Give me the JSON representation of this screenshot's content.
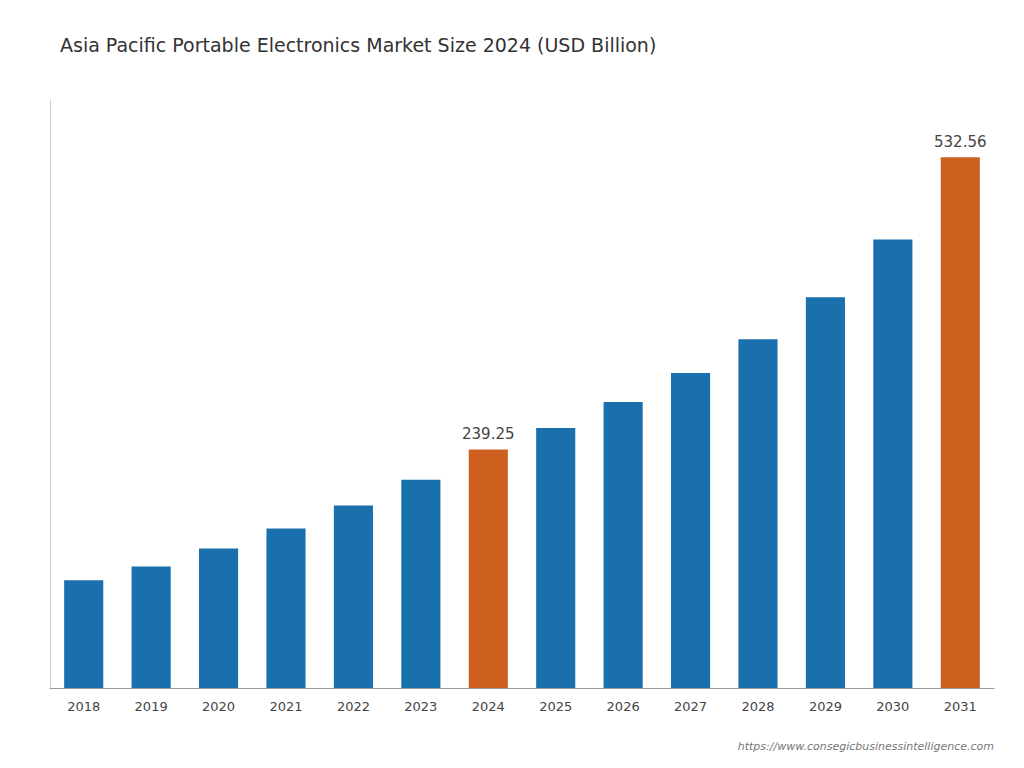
{
  "chart_data": {
    "type": "bar",
    "title": "Asia Pacific Portable Electronics Market Size 2024 (USD Billion)",
    "categories": [
      "2018",
      "2019",
      "2020",
      "2021",
      "2022",
      "2023",
      "2024",
      "2025",
      "2026",
      "2027",
      "2028",
      "2029",
      "2030",
      "2031"
    ],
    "values": [
      108.0,
      122.0,
      140.0,
      160.0,
      183.0,
      209.0,
      239.25,
      261.0,
      287.0,
      316.0,
      350.0,
      392.0,
      450.0,
      532.56
    ],
    "value_labels": [
      null,
      null,
      null,
      null,
      null,
      null,
      "239.25",
      null,
      null,
      null,
      null,
      null,
      null,
      "532.56"
    ],
    "colors": [
      "#1a6fad",
      "#1a6fad",
      "#1a6fad",
      "#1a6fad",
      "#1a6fad",
      "#1a6fad",
      "#cf6120",
      "#1a6fad",
      "#1a6fad",
      "#1a6fad",
      "#1a6fad",
      "#1a6fad",
      "#1a6fad",
      "#cf6120"
    ],
    "ylim": [
      0,
      590
    ],
    "tick_labels": "x",
    "grid": false,
    "annotations": [
      "https://www.consegicbusinessintelligence.com"
    ]
  }
}
